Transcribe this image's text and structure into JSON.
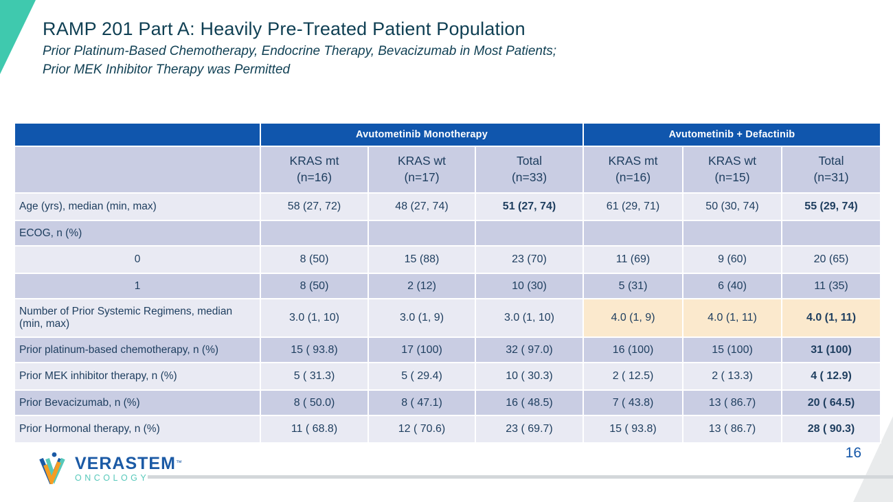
{
  "slide": {
    "title": "RAMP 201 Part A: Heavily Pre-Treated Patient Population",
    "subtitle_line1": "Prior Platinum-Based Chemotherapy, Endocrine Therapy, Bevacizumab in Most Patients;",
    "subtitle_line2": "Prior MEK Inhibitor Therapy was Permitted",
    "page_number": "16"
  },
  "logo": {
    "name": "VERASTEM",
    "trademark": "™",
    "subtext": "ONCOLOGY"
  },
  "table": {
    "group_headers": [
      {
        "label": "Avutometinib Monotherapy"
      },
      {
        "label": "Avutometinib + Defactinib"
      }
    ],
    "column_headers": [
      {
        "line1": "KRAS mt",
        "line2": "(n=16)"
      },
      {
        "line1": "KRAS wt",
        "line2": "(n=17)"
      },
      {
        "line1": "Total",
        "line2": "(n=33)"
      },
      {
        "line1": "KRAS mt",
        "line2": "(n=16)"
      },
      {
        "line1": "KRAS wt",
        "line2": "(n=15)"
      },
      {
        "line1": "Total",
        "line2": "(n=31)"
      }
    ],
    "rows": [
      {
        "label": "Age (yrs), median (min, max)",
        "label_align": "left",
        "shade": "light",
        "height": "h38",
        "cells": [
          "58 (27, 72)",
          "48 (27, 74)",
          "51 (27, 74)",
          "61 (29, 71)",
          "50 (30, 74)",
          "55 (29, 74)"
        ],
        "bold": [
          false,
          false,
          true,
          false,
          false,
          true
        ],
        "highlight_cells": []
      },
      {
        "label": "ECOG, n (%)",
        "label_align": "left",
        "shade": "dark",
        "height": "",
        "cells": [
          "",
          "",
          "",
          "",
          "",
          ""
        ],
        "bold": [
          false,
          false,
          false,
          false,
          false,
          false
        ],
        "highlight_cells": []
      },
      {
        "label": "0",
        "label_align": "center",
        "shade": "light",
        "height": "h38",
        "cells": [
          "8 (50)",
          "15 (88)",
          "23 (70)",
          "11 (69)",
          "9 (60)",
          "20 (65)"
        ],
        "bold": [
          false,
          false,
          false,
          false,
          false,
          false
        ],
        "highlight_cells": []
      },
      {
        "label": "1",
        "label_align": "center",
        "shade": "dark",
        "height": "",
        "cells": [
          "8 (50)",
          "2 (12)",
          "10 (30)",
          "5 (31)",
          "6 (40)",
          "11 (35)"
        ],
        "bold": [
          false,
          false,
          false,
          false,
          false,
          false
        ],
        "highlight_cells": []
      },
      {
        "label": "Number of Prior Systemic Regimens, median (min, max)",
        "label_align": "left",
        "shade": "light",
        "height": "h54",
        "cells": [
          "3.0 (1, 10)",
          "3.0 (1, 9)",
          "3.0 (1, 10)",
          "4.0 (1, 9)",
          "4.0 (1, 11)",
          "4.0 (1, 11)"
        ],
        "bold": [
          false,
          false,
          false,
          false,
          false,
          true
        ],
        "highlight_cells": [
          3,
          4,
          5
        ]
      },
      {
        "label": "Prior platinum-based chemotherapy, n (%)",
        "label_align": "left",
        "shade": "dark",
        "height": "",
        "cells": [
          "15 ( 93.8)",
          "17 (100)",
          "32 ( 97.0)",
          "16 (100)",
          "15 (100)",
          "31 (100)"
        ],
        "bold": [
          false,
          false,
          false,
          false,
          false,
          true
        ],
        "highlight_cells": []
      },
      {
        "label": "Prior MEK inhibitor therapy, n (%)",
        "label_align": "left",
        "shade": "light",
        "height": "h38",
        "cells": [
          "5 ( 31.3)",
          "5 ( 29.4)",
          "10 ( 30.3)",
          "2 ( 12.5)",
          "2 ( 13.3)",
          "4 ( 12.9)"
        ],
        "bold": [
          false,
          false,
          false,
          false,
          false,
          true
        ],
        "highlight_cells": []
      },
      {
        "label": "Prior Bevacizumab, n (%)",
        "label_align": "left",
        "shade": "dark",
        "height": "",
        "cells": [
          "8 ( 50.0)",
          "8 ( 47.1)",
          "16 ( 48.5)",
          "7 ( 43.8)",
          "13 ( 86.7)",
          "20 ( 64.5)"
        ],
        "bold": [
          false,
          false,
          false,
          false,
          false,
          true
        ],
        "highlight_cells": []
      },
      {
        "label": "Prior Hormonal therapy, n (%)",
        "label_align": "left",
        "shade": "light",
        "height": "h38",
        "cells": [
          "11 ( 68.8)",
          "12 ( 70.6)",
          "23 ( 69.7)",
          "15 ( 93.8)",
          "13 ( 86.7)",
          "28 ( 90.3)"
        ],
        "bold": [
          false,
          false,
          false,
          false,
          false,
          true
        ],
        "highlight_cells": []
      }
    ]
  },
  "colors": {
    "header_blue": "#1056ad",
    "row_light": "#e9eaf3",
    "row_dark": "#c9cde3",
    "text_dark": "#1d3d5e",
    "title_color": "#0f3f53",
    "highlight_bg": "#fbe9cd",
    "highlight_border": "#4e7c28",
    "corner_teal": "#3fc9ae",
    "footer_line_gray": "#d3d7da",
    "page_number_blue": "#1457a8",
    "logo_blue": "#1b5aa5",
    "logo_teal": "#56c8ba",
    "logo_orange": "#f59d24"
  }
}
